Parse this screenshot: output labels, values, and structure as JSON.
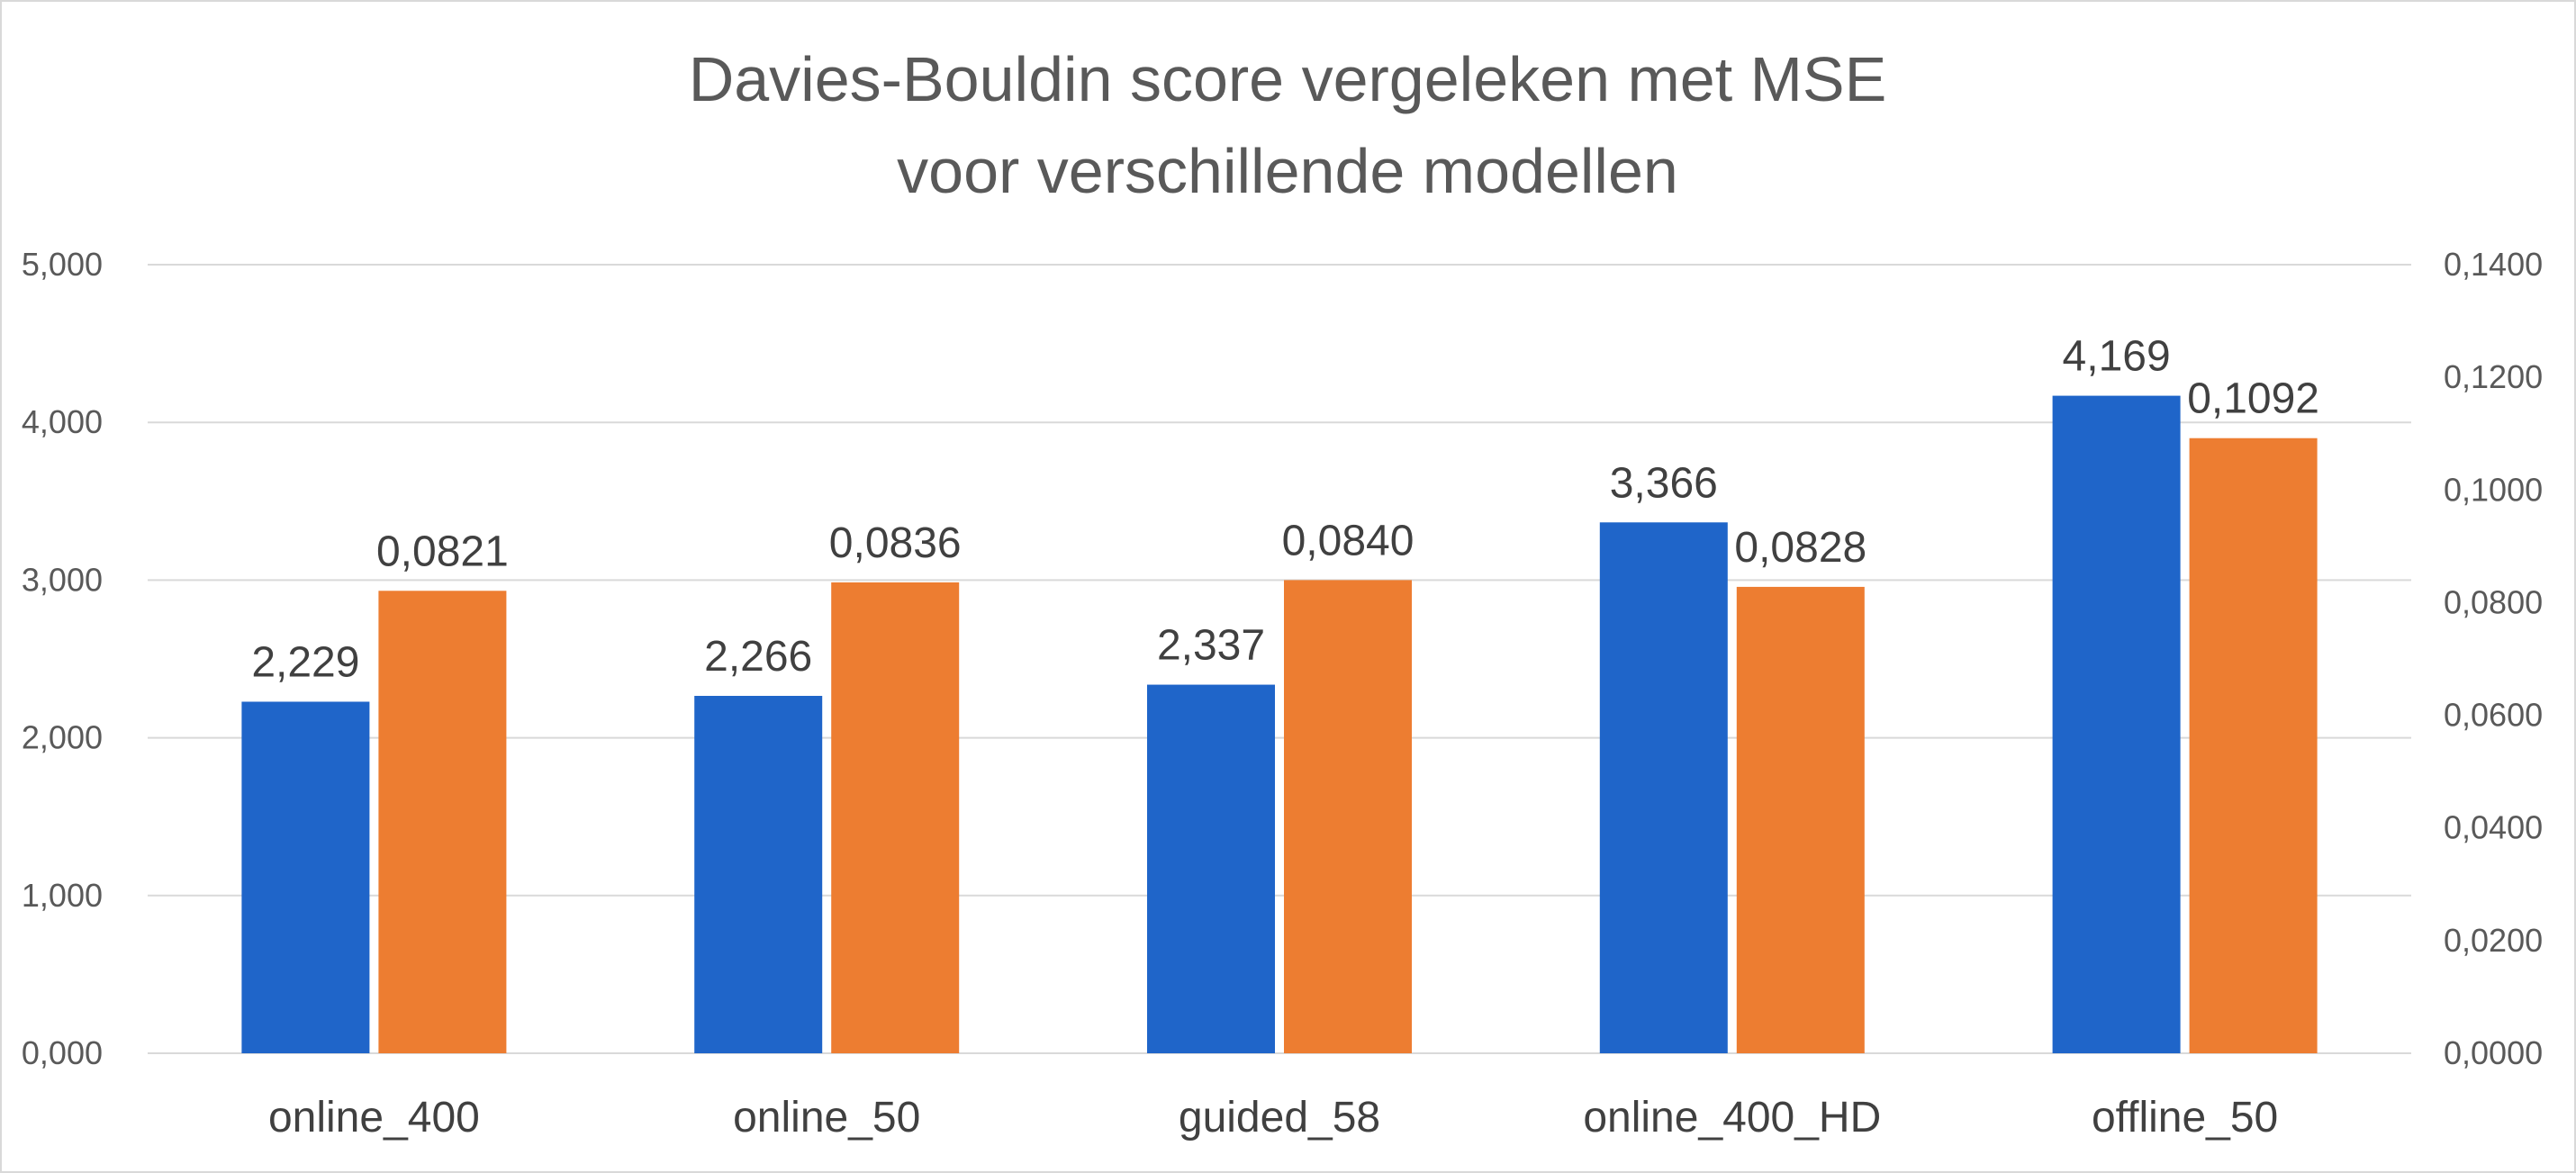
{
  "chart_data": {
    "type": "bar",
    "title_lines": [
      "Davies-Bouldin score vergeleken met MSE",
      "voor verschillende modellen"
    ],
    "categories": [
      "online_400",
      "online_50",
      "guided_58",
      "online_400_HD",
      "offline_50"
    ],
    "series": [
      {
        "axis": "left",
        "color": "#1f65c9",
        "values": [
          2.229,
          2.266,
          2.337,
          3.366,
          4.169
        ],
        "labels": [
          "2,229",
          "2,266",
          "2,337",
          "3,366",
          "4,169"
        ]
      },
      {
        "axis": "right",
        "color": "#ed7d31",
        "values": [
          0.0821,
          0.0836,
          0.084,
          0.0828,
          0.1092
        ],
        "labels": [
          "0,0821",
          "0,0836",
          "0,0840",
          "0,0828",
          "0,1092"
        ]
      }
    ],
    "y_left": {
      "min": 0,
      "max": 5,
      "step": 1,
      "tick_labels": [
        "0,000",
        "1,000",
        "2,000",
        "3,000",
        "4,000",
        "5,000"
      ]
    },
    "y_right": {
      "min": 0,
      "max": 0.14,
      "step": 0.02,
      "tick_labels": [
        "0,0000",
        "0,0200",
        "0,0400",
        "0,0600",
        "0,0800",
        "0,1000",
        "0,1200",
        "0,1400"
      ]
    },
    "grid": true,
    "legend": "none"
  }
}
